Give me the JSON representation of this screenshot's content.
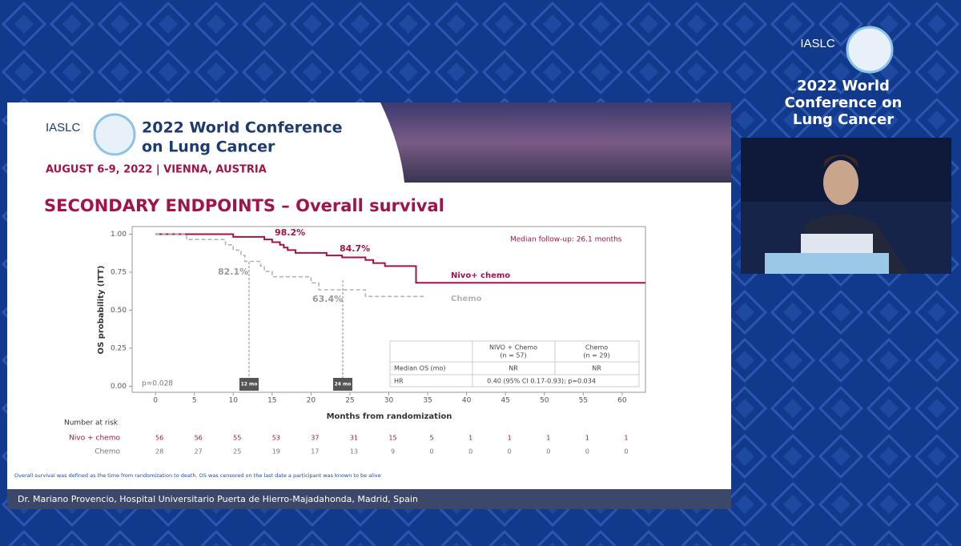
{
  "sidebar": {
    "org": "IASLC",
    "title_lines": [
      "2022 World",
      "Conference on",
      "Lung Cancer"
    ]
  },
  "slide": {
    "org": "IASLC",
    "title_lines": [
      "2022 World Conference",
      "on Lung Cancer"
    ],
    "dates": "AUGUST 6-9, 2022 | VIENNA, AUSTRIA",
    "heading": "SECONDARY ENDPOINTS – Overall survival",
    "footnote": "Overall survival was defined as the time from randomization to death. OS was censored on the last date a participant was known to be alive",
    "presenter": "Dr. Mariano Provencio, Hospital Universitario Puerta de Hierro-Majadahonda, Madrid, Spain"
  },
  "chart_data": {
    "type": "line",
    "step": true,
    "ylabel": "OS probability (ITT)",
    "xlabel": "Months from randomization",
    "xlim": [
      -3,
      63
    ],
    "xticks": [
      0,
      5,
      10,
      15,
      20,
      25,
      30,
      35,
      40,
      45,
      50,
      55,
      60
    ],
    "ylim": [
      -0.04,
      1.05
    ],
    "yticks": [
      {
        "value": 0,
        "label": "0.00"
      },
      {
        "value": 0.25,
        "label": "0.25"
      },
      {
        "value": 0.5,
        "label": "0.50"
      },
      {
        "value": 0.75,
        "label": "0.75"
      },
      {
        "value": 1,
        "label": "1.00"
      }
    ],
    "series": [
      {
        "name": "Nivo+ chemo",
        "color": "#a0144b",
        "x": [
          0,
          10,
          14,
          15,
          16,
          16.5,
          17,
          18,
          22,
          24,
          27,
          28,
          29.5,
          33.5,
          63
        ],
        "values": [
          1,
          0.982,
          0.965,
          0.947,
          0.93,
          0.912,
          0.895,
          0.877,
          0.86,
          0.847,
          0.83,
          0.81,
          0.79,
          0.68,
          0.68
        ]
      },
      {
        "name": "Chemo",
        "color": "#b4b4b4",
        "x": [
          0,
          4,
          9,
          10,
          11,
          11.5,
          13.5,
          14,
          15,
          20,
          21,
          27,
          34.5
        ],
        "values": [
          1,
          0.965,
          0.93,
          0.895,
          0.86,
          0.821,
          0.79,
          0.755,
          0.72,
          0.68,
          0.634,
          0.59,
          0.59
        ]
      }
    ],
    "annotations": [
      "98.2%",
      "84.7%",
      "82.1%",
      "63.4%",
      "Median follow-up: 26.1 months",
      "p=0.028",
      "12 mo",
      "24 mo"
    ],
    "risk_table": {
      "title": "Number at risk",
      "rows": [
        {
          "name": "Nivo + chemo",
          "values": [
            56,
            56,
            55,
            53,
            37,
            31,
            15,
            5,
            1,
            1,
            1,
            1,
            1
          ]
        },
        {
          "name": "Chemo",
          "values": [
            28,
            27,
            25,
            19,
            17,
            13,
            9,
            0,
            0,
            0,
            0,
            0,
            0
          ]
        }
      ]
    },
    "summary_table": {
      "header": [
        [
          "NIVO + Chemo",
          "(n = 57)"
        ],
        [
          "Chemo",
          "(n = 29)"
        ]
      ],
      "rows": [
        [
          "Median OS (mo)",
          "NR",
          "NR"
        ],
        [
          "HR",
          "0.40 (95% CI 0.17-0.93); p=0.034"
        ]
      ]
    }
  }
}
